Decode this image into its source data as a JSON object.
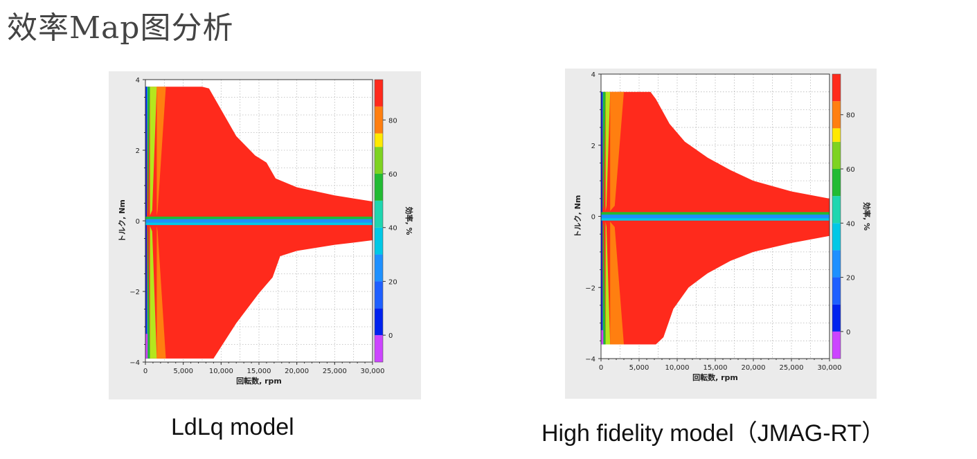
{
  "title": "效率Map图分析",
  "colors": {
    "zone_main": "#ff2a1c",
    "zone_orange": "#ff7f10",
    "zone_yellow": "#ffe900",
    "zone_ygreen": "#b5e61d",
    "zone_green": "#22bb33",
    "zone_cyan": "#00c8e6",
    "zone_sky": "#1e90ff",
    "zone_blue": "#0022ee",
    "zone_violet": "#cc44ff",
    "panel_bg": "#ebebeb"
  },
  "chart_data": [
    {
      "type": "heatmap",
      "caption": "LdLq model",
      "xlabel": "回転数, rpm",
      "ylabel": "トルク, Nm",
      "colorbar_label": "効率, %",
      "xlim": [
        0,
        30000
      ],
      "ylim": [
        -4,
        4
      ],
      "x_ticks": [
        "0",
        "5,000",
        "10,000",
        "15,000",
        "20,000",
        "25,000",
        "30,000"
      ],
      "y_ticks": [
        "4",
        "2",
        "0",
        "−2",
        "−4"
      ],
      "colorbar_ticks": [
        "80",
        "60",
        "40",
        "20",
        "0"
      ],
      "colorbar_range": [
        -10,
        95
      ],
      "colorbar_bands": [
        {
          "from": -10,
          "to": 0,
          "color": "#cc44ff"
        },
        {
          "from": 0,
          "to": 10,
          "color": "#0022ee"
        },
        {
          "from": 10,
          "to": 20,
          "color": "#1e5fff"
        },
        {
          "from": 20,
          "to": 30,
          "color": "#1e90ff"
        },
        {
          "from": 30,
          "to": 40,
          "color": "#00c8e6"
        },
        {
          "from": 40,
          "to": 50,
          "color": "#1ed6b0"
        },
        {
          "from": 50,
          "to": 60,
          "color": "#22bb33"
        },
        {
          "from": 60,
          "to": 70,
          "color": "#7ed321"
        },
        {
          "from": 70,
          "to": 75,
          "color": "#ffe900"
        },
        {
          "from": 75,
          "to": 85,
          "color": "#ff7f10"
        },
        {
          "from": 85,
          "to": 95,
          "color": "#ff2a1c"
        }
      ],
      "max_torque": 3.8,
      "envelope_upper": [
        [
          0,
          3.8
        ],
        [
          7500,
          3.8
        ],
        [
          8400,
          3.75
        ],
        [
          12000,
          2.4
        ],
        [
          14500,
          1.85
        ],
        [
          16000,
          1.65
        ],
        [
          17200,
          1.2
        ],
        [
          20000,
          0.95
        ],
        [
          25000,
          0.72
        ],
        [
          30000,
          0.55
        ]
      ],
      "envelope_lower": [
        [
          0,
          -3.9
        ],
        [
          9000,
          -3.9
        ],
        [
          12000,
          -2.9
        ],
        [
          15000,
          -2.05
        ],
        [
          16800,
          -1.6
        ],
        [
          17800,
          -1.0
        ],
        [
          20000,
          -0.85
        ],
        [
          25000,
          -0.68
        ],
        [
          30000,
          -0.55
        ]
      ],
      "outer_band_rpm": [
        [
          0,
          280,
          "#1e90ff"
        ],
        [
          280,
          600,
          "#22bb33"
        ],
        [
          600,
          1500,
          "#b5e61d"
        ],
        [
          1500,
          2700,
          "#ff7f10"
        ]
      ]
    },
    {
      "type": "heatmap",
      "caption": "High fidelity model（JMAG-RT）",
      "xlabel": "回転数, rpm",
      "ylabel": "トルク, Nm",
      "colorbar_label": "効率, %",
      "xlim": [
        0,
        30000
      ],
      "ylim": [
        -4,
        4
      ],
      "x_ticks": [
        "0",
        "5,000",
        "10,000",
        "15,000",
        "20,000",
        "25,000",
        "30,000"
      ],
      "y_ticks": [
        "4",
        "2",
        "0",
        "−2",
        "−4"
      ],
      "colorbar_ticks": [
        "80",
        "60",
        "40",
        "20",
        "0"
      ],
      "colorbar_range": [
        -10,
        95
      ],
      "colorbar_bands": [
        {
          "from": -10,
          "to": 0,
          "color": "#cc44ff"
        },
        {
          "from": 0,
          "to": 10,
          "color": "#0022ee"
        },
        {
          "from": 10,
          "to": 20,
          "color": "#1e5fff"
        },
        {
          "from": 20,
          "to": 30,
          "color": "#1e90ff"
        },
        {
          "from": 30,
          "to": 40,
          "color": "#00c8e6"
        },
        {
          "from": 40,
          "to": 50,
          "color": "#1ed6b0"
        },
        {
          "from": 50,
          "to": 60,
          "color": "#22bb33"
        },
        {
          "from": 60,
          "to": 70,
          "color": "#7ed321"
        },
        {
          "from": 70,
          "to": 75,
          "color": "#ffe900"
        },
        {
          "from": 75,
          "to": 85,
          "color": "#ff7f10"
        },
        {
          "from": 85,
          "to": 95,
          "color": "#ff2a1c"
        }
      ],
      "max_torque": 3.5,
      "envelope_upper": [
        [
          0,
          3.5
        ],
        [
          6500,
          3.5
        ],
        [
          7200,
          3.3
        ],
        [
          9000,
          2.6
        ],
        [
          11000,
          2.1
        ],
        [
          14000,
          1.65
        ],
        [
          17000,
          1.3
        ],
        [
          20000,
          1.0
        ],
        [
          25000,
          0.7
        ],
        [
          30000,
          0.5
        ]
      ],
      "envelope_lower": [
        [
          0,
          -3.6
        ],
        [
          7200,
          -3.6
        ],
        [
          8200,
          -3.4
        ],
        [
          9500,
          -2.6
        ],
        [
          11500,
          -2.0
        ],
        [
          14000,
          -1.6
        ],
        [
          17000,
          -1.25
        ],
        [
          20000,
          -1.0
        ],
        [
          25000,
          -0.75
        ],
        [
          30000,
          -0.55
        ]
      ],
      "outer_band_rpm": [
        [
          0,
          250,
          "#1e90ff"
        ],
        [
          250,
          600,
          "#22bb33"
        ],
        [
          600,
          1200,
          "#b5e61d"
        ],
        [
          1200,
          3000,
          "#ff7f10"
        ]
      ]
    }
  ]
}
